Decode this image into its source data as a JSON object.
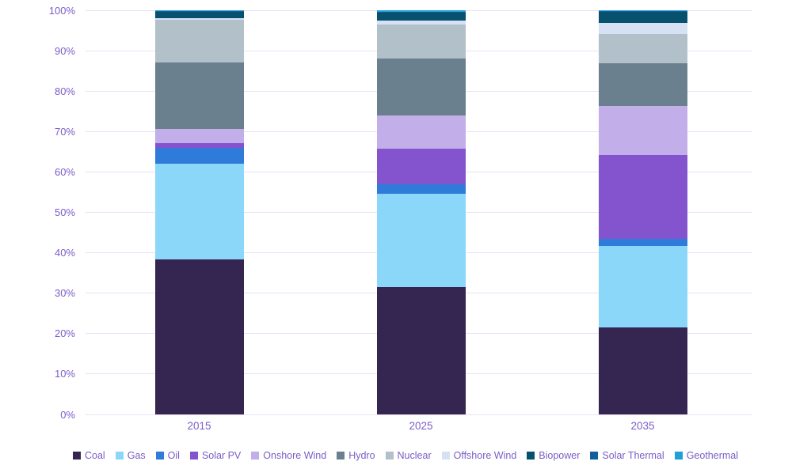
{
  "chart_data": {
    "type": "bar",
    "variant": "stacked-100-percent",
    "title": "",
    "xlabel": "",
    "ylabel": "",
    "categories": [
      "2015",
      "2025",
      "2035"
    ],
    "series": [
      {
        "name": "Coal",
        "color": "#352551",
        "values": [
          38.3,
          31.6,
          21.5
        ]
      },
      {
        "name": "Gas",
        "color": "#8bd7fa",
        "values": [
          23.8,
          23.1,
          20.2
        ]
      },
      {
        "name": "Oil",
        "color": "#2f7bd9",
        "values": [
          3.8,
          2.2,
          1.7
        ]
      },
      {
        "name": "Solar PV",
        "color": "#8354ce",
        "values": [
          1.2,
          8.9,
          20.7
        ]
      },
      {
        "name": "Onshore Wind",
        "color": "#c2aee8",
        "values": [
          3.5,
          8.2,
          12.2
        ]
      },
      {
        "name": "Hydro",
        "color": "#6a808f",
        "values": [
          16.4,
          14.0,
          10.6
        ]
      },
      {
        "name": "Nuclear",
        "color": "#b2c0c9",
        "values": [
          10.6,
          8.5,
          7.3
        ]
      },
      {
        "name": "Offshore Wind",
        "color": "#d6e2f3",
        "values": [
          0.5,
          1.0,
          2.6
        ]
      },
      {
        "name": "Biopower",
        "color": "#07506e",
        "values": [
          1.5,
          2.0,
          2.8
        ]
      },
      {
        "name": "Solar Thermal",
        "color": "#10609b",
        "values": [
          0.2,
          0.2,
          0.2
        ]
      },
      {
        "name": "Geothermal",
        "color": "#239fd8",
        "values": [
          0.2,
          0.3,
          0.2
        ]
      }
    ],
    "y_ticks": [
      "0%",
      "10%",
      "20%",
      "30%",
      "40%",
      "50%",
      "60%",
      "70%",
      "80%",
      "90%",
      "100%"
    ],
    "ylim": [
      0,
      100
    ],
    "grid": true,
    "legend_position": "bottom",
    "axis_text_color": "#7b5dc8",
    "gridline_color": "#e8e2f6",
    "background_color": "#ffffff"
  }
}
